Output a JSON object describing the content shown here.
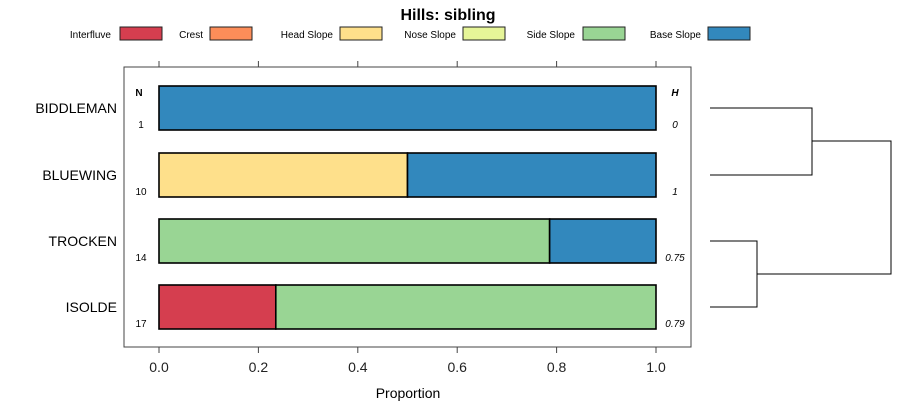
{
  "chart_data": {
    "type": "bar",
    "stacked": true,
    "orientation": "horizontal",
    "title": "Hills: sibling",
    "xlabel": "Proportion",
    "ylabel": "",
    "xlim": [
      0,
      1
    ],
    "xticks": [
      "0.0",
      "0.2",
      "0.4",
      "0.6",
      "0.8",
      "1.0"
    ],
    "legend_position": "top",
    "legend": [
      {
        "name": "Interfluve",
        "color": "#D53E4F"
      },
      {
        "name": "Crest",
        "color": "#FC8D59"
      },
      {
        "name": "Head Slope",
        "color": "#FEE08B"
      },
      {
        "name": "Nose Slope",
        "color": "#E6F598"
      },
      {
        "name": "Side Slope",
        "color": "#99D594"
      },
      {
        "name": "Base Slope",
        "color": "#3288BD"
      }
    ],
    "n_header": "N",
    "h_header": "H",
    "categories": [
      "BIDDLEMAN",
      "BLUEWING",
      "TROCKEN",
      "ISOLDE"
    ],
    "n_values": [
      "1",
      "10",
      "14",
      "17"
    ],
    "h_values": [
      "0",
      "1",
      "0.75",
      "0.79"
    ],
    "series": [
      {
        "name": "Interfluve",
        "values": [
          0,
          0,
          0,
          0.235
        ]
      },
      {
        "name": "Crest",
        "values": [
          0,
          0,
          0,
          0
        ]
      },
      {
        "name": "Head Slope",
        "values": [
          0,
          0.5,
          0,
          0
        ]
      },
      {
        "name": "Nose Slope",
        "values": [
          0,
          0,
          0,
          0
        ]
      },
      {
        "name": "Side Slope",
        "values": [
          0,
          0,
          0.786,
          0.765
        ]
      },
      {
        "name": "Base Slope",
        "values": [
          1,
          0.5,
          0.214,
          0
        ]
      }
    ],
    "dendrogram": {
      "merges": [
        [
          "BIDDLEMAN",
          "BLUEWING"
        ],
        [
          "TROCKEN",
          "ISOLDE"
        ],
        [
          "cluster1",
          "cluster2"
        ]
      ]
    }
  }
}
